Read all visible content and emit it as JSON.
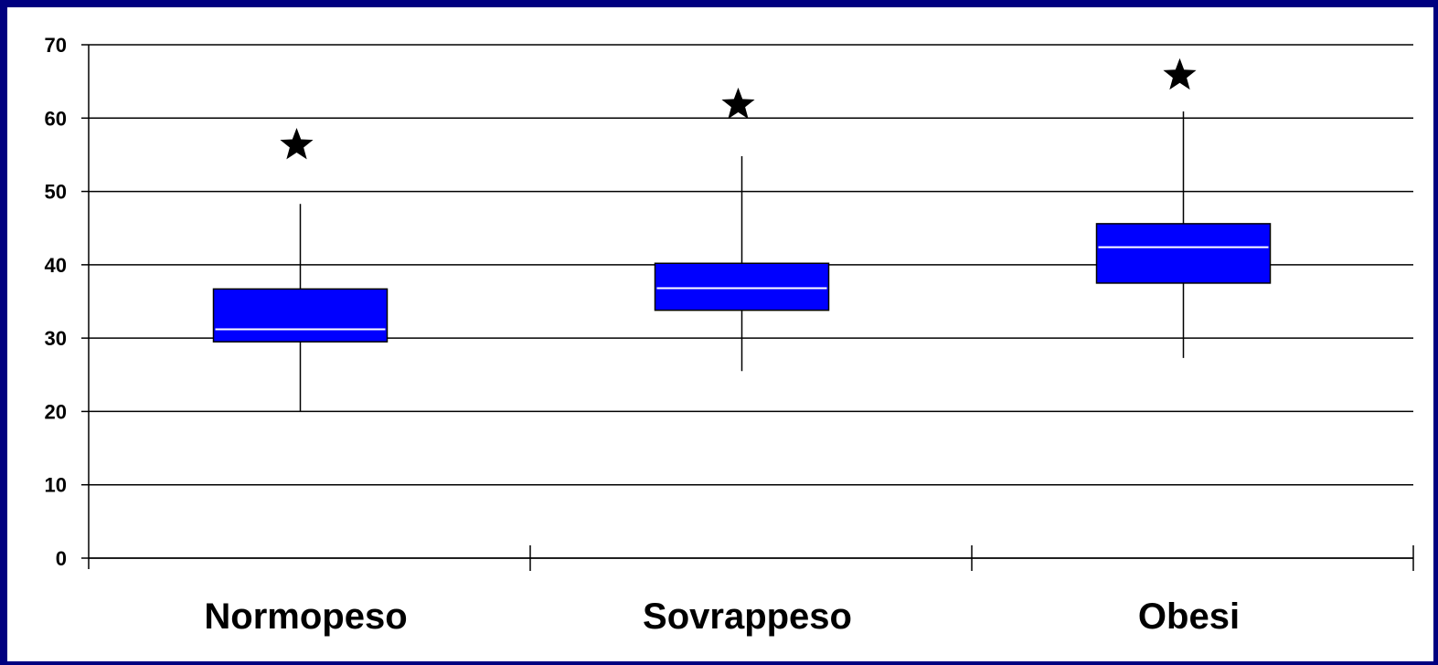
{
  "colors": {
    "border": "#000080",
    "box_fill": "#0000FF",
    "median": "#FFFFFF",
    "line": "#000000"
  },
  "chart_data": {
    "type": "boxplot",
    "title": "",
    "xlabel": "",
    "ylabel": "",
    "ylim": [
      0,
      70
    ],
    "y_ticks": [
      0,
      10,
      20,
      30,
      40,
      50,
      60,
      70
    ],
    "grid": true,
    "legend": "none",
    "outlier_marker": "star-icon",
    "categories": [
      "Normopeso",
      "Sovrappeso",
      "Obesi"
    ],
    "boxes": [
      {
        "min": 20,
        "q1": 29.5,
        "median": 31.2,
        "q3": 36.7,
        "max": 48.3,
        "outliers": [
          56.3
        ]
      },
      {
        "min": 25.5,
        "q1": 33.8,
        "median": 36.8,
        "q3": 40.2,
        "max": 54.8,
        "outliers": [
          61.8
        ]
      },
      {
        "min": 27.3,
        "q1": 37.5,
        "median": 42.4,
        "q3": 45.6,
        "max": 60.9,
        "outliers": [
          65.8
        ]
      }
    ]
  }
}
